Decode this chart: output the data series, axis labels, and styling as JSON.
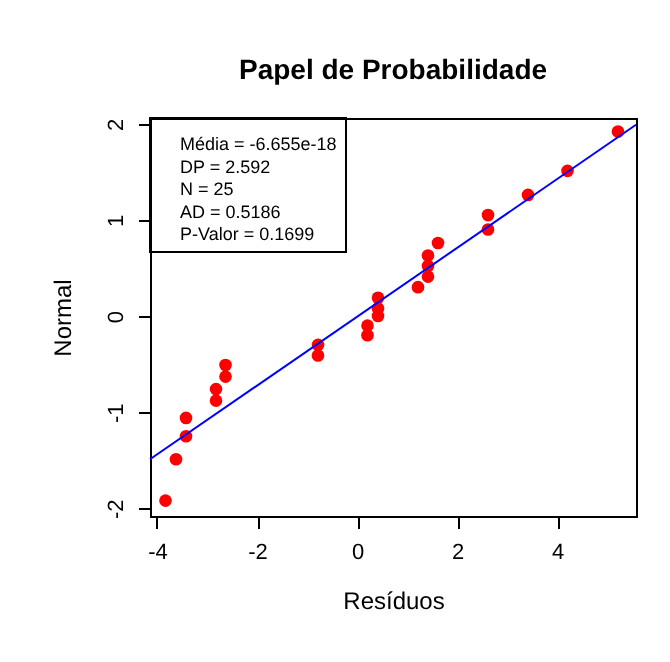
{
  "chart_data": {
    "type": "scatter",
    "title": "Papel de Probabilidade",
    "xlabel": "Resíduos",
    "ylabel": "Normal",
    "annotations": [
      "Média = -6.655e-18",
      "DP = 2.592",
      "N = 25",
      "AD = 0.5186",
      "P-Valor = 0.1699"
    ],
    "xlim": [
      -4.14,
      5.58
    ],
    "ylim": [
      -2.08,
      2.06
    ],
    "xticks": [
      -4,
      -2,
      0,
      2,
      4
    ],
    "yticks": [
      -2,
      -1,
      0,
      1,
      2
    ],
    "grid": false,
    "series": [
      {
        "marker": "circle",
        "color": "#ff0000",
        "x": [
          -3.83,
          -3.62,
          -3.42,
          -3.42,
          -2.82,
          -2.82,
          -2.63,
          -2.63,
          -0.78,
          -0.78,
          0.21,
          0.21,
          0.42,
          0.42,
          0.42,
          1.22,
          1.42,
          1.42,
          1.42,
          1.62,
          2.62,
          2.62,
          3.42,
          4.21,
          5.22
        ],
        "values": [
          -1.92,
          -1.49,
          -1.25,
          -1.06,
          -0.88,
          -0.76,
          -0.63,
          -0.51,
          -0.41,
          -0.3,
          -0.2,
          -0.1,
          0,
          0.08,
          0.19,
          0.3,
          0.41,
          0.52,
          0.63,
          0.76,
          0.9,
          1.05,
          1.26,
          1.51,
          1.92
        ]
      },
      {
        "type": "line",
        "color": "#0000ff",
        "x": [
          -4.14,
          5.58
        ],
        "values": [
          -1.49,
          1.99
        ]
      }
    ]
  }
}
